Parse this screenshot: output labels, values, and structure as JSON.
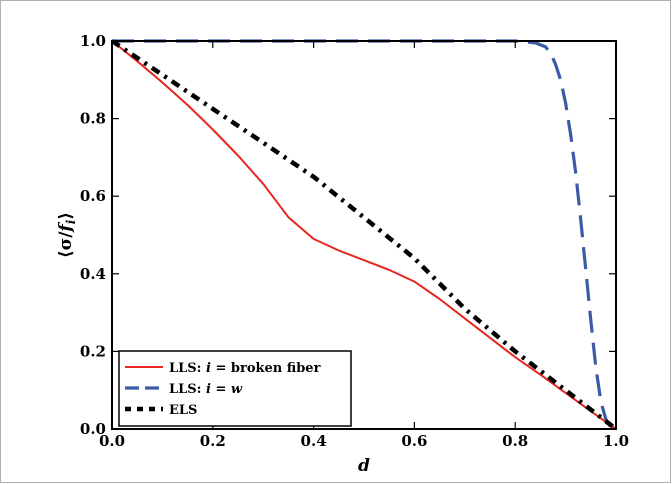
{
  "chart_data": {
    "type": "line",
    "title": "",
    "xlabel": "d",
    "ylabel_parts": [
      "⟨σ/",
      "f",
      "i",
      "⟩"
    ],
    "xlim": [
      0.0,
      1.0
    ],
    "ylim": [
      0.0,
      1.0
    ],
    "xticks": [
      "0.0",
      "0.2",
      "0.4",
      "0.6",
      "0.8",
      "1.0"
    ],
    "yticks": [
      "0.0",
      "0.2",
      "0.4",
      "0.6",
      "0.8",
      "1.0"
    ],
    "grid": false,
    "legend_position": "bottom-left",
    "series": [
      {
        "name": "LLS: i = broken fiber",
        "legend_parts": [
          "LLS: ",
          "i",
          " = broken fiber"
        ],
        "style": "solid",
        "color": "#e8251f",
        "x": [
          0.0,
          0.05,
          0.1,
          0.15,
          0.2,
          0.25,
          0.3,
          0.35,
          0.4,
          0.45,
          0.5,
          0.55,
          0.6,
          0.65,
          0.7,
          0.75,
          0.8,
          0.85,
          0.9,
          0.95,
          1.0
        ],
        "y": [
          1.0,
          0.948,
          0.893,
          0.835,
          0.772,
          0.705,
          0.632,
          0.546,
          0.49,
          0.46,
          0.435,
          0.41,
          0.38,
          0.335,
          0.285,
          0.235,
          0.185,
          0.14,
          0.093,
          0.046,
          0.0
        ]
      },
      {
        "name": "LLS: i = w",
        "legend_parts": [
          "LLS: ",
          "i",
          " = ",
          "w"
        ],
        "style": "dashed",
        "color": "#3c5ba6",
        "x": [
          0.0,
          0.1,
          0.2,
          0.3,
          0.4,
          0.5,
          0.6,
          0.7,
          0.8,
          0.84,
          0.86,
          0.87,
          0.88,
          0.89,
          0.9,
          0.91,
          0.92,
          0.93,
          0.94,
          0.95,
          0.96,
          0.97,
          0.98,
          0.99,
          1.0
        ],
        "y": [
          1.0,
          1.0,
          1.0,
          1.0,
          1.0,
          1.0,
          1.0,
          1.0,
          1.0,
          0.995,
          0.985,
          0.97,
          0.94,
          0.9,
          0.84,
          0.76,
          0.66,
          0.54,
          0.41,
          0.28,
          0.16,
          0.07,
          0.025,
          0.005,
          0.0
        ]
      },
      {
        "name": "ELS",
        "legend_parts": [
          "ELS"
        ],
        "style": "dash-dot",
        "color": "#000000",
        "x": [
          0.0,
          0.1,
          0.2,
          0.3,
          0.4,
          0.5,
          0.6,
          0.7,
          0.8,
          0.9,
          1.0
        ],
        "y": [
          1.0,
          0.913,
          0.825,
          0.738,
          0.65,
          0.545,
          0.44,
          0.31,
          0.2,
          0.1,
          0.0
        ]
      }
    ]
  }
}
